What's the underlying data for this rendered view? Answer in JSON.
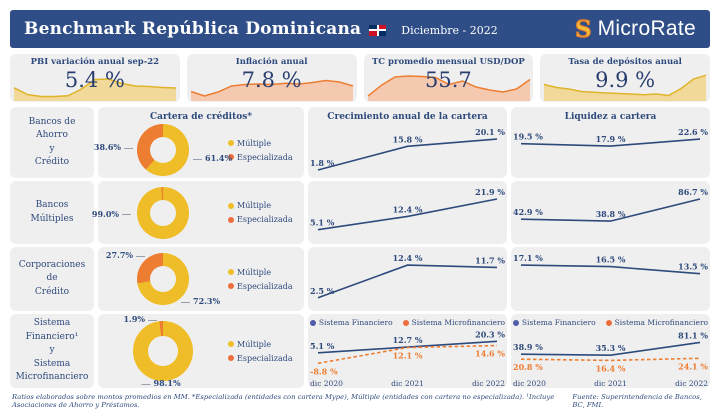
{
  "header": {
    "title": "Benchmark República Dominicana",
    "period": "Diciembre - 2022",
    "logo_glyph": "S",
    "logo_text": "MicroRate"
  },
  "columns": {
    "portfolio": "Cartera de créditos*",
    "growth": "Crecimiento anual de la cartera",
    "liquidity": "Liquidez a cartera"
  },
  "donut_legend": {
    "multiple": "Múltiple",
    "specialized": "Especializada"
  },
  "series_legend": {
    "financial": "Sistema Financiero",
    "micro": "Sistema Microfinanciero"
  },
  "rows": [
    {
      "label": "Bancos de\nAhorro\ny\nCrédito"
    },
    {
      "label": "Bancos\nMúltiples"
    },
    {
      "label": "Corporaciones\nde\nCrédito"
    },
    {
      "label": "Sistema\nFinanciero¹\ny\nSistema\nMicrofinanciero"
    }
  ],
  "footer": {
    "left": "Ratios elaborados sobre montos promedios en MM. *Especializada (entidades con cartera Mype), Múltiple (entidades con cartera no especializada). ¹Incluye Asociaciones de Ahorro y Préstamos.",
    "right": "Fuente: Superintendencia de Bancos, BC, FMI."
  },
  "colors": {
    "navy": "#2E4A7C",
    "header_bg": "#2F4E87",
    "yellow": "#EFBD27",
    "orange": "#ED7D31",
    "panel_gray": "#EFEFEF"
  },
  "chart_data": [
    {
      "id": "kpi-pbi",
      "type": "area",
      "title": "PBI variación anual sep-22",
      "value_label": "5.4 %",
      "stroke": "#E0B32A",
      "fill": "#F1D583",
      "values_relative": [
        0.45,
        0.18,
        0.1,
        0.1,
        0.13,
        0.4,
        0.78,
        0.8,
        0.62,
        0.52,
        0.5,
        0.46,
        0.44
      ]
    },
    {
      "id": "kpi-inflacion",
      "type": "area",
      "title": "Inflación anual",
      "value_label": "7.8 %",
      "stroke": "#ED7D31",
      "fill": "#F5BFA0",
      "values_relative": [
        0.3,
        0.12,
        0.28,
        0.52,
        0.58,
        0.6,
        0.58,
        0.63,
        0.6,
        0.66,
        0.74,
        0.68,
        0.52
      ]
    },
    {
      "id": "kpi-tc",
      "type": "area",
      "title": "TC promedio mensual USD/DOP",
      "value_label": "55.7",
      "stroke": "#ED7D31",
      "fill": "#F5BFA0",
      "values_relative": [
        0.12,
        0.55,
        0.88,
        0.92,
        0.9,
        0.86,
        0.58,
        0.72,
        0.48,
        0.36,
        0.28,
        0.4,
        0.78
      ]
    },
    {
      "id": "kpi-depositos",
      "type": "area",
      "title": "Tasa de depósitos anual",
      "value_label": "9.9 %",
      "stroke": "#E0B32A",
      "fill": "#F1D583",
      "values_relative": [
        0.58,
        0.46,
        0.4,
        0.3,
        0.27,
        0.24,
        0.22,
        0.2,
        0.17,
        0.2,
        0.14,
        0.42,
        0.8,
        0.95
      ]
    },
    {
      "id": "donut-bac",
      "type": "pie",
      "labels": [
        "Múltiple",
        "Especializada"
      ],
      "values": [
        61.4,
        38.6
      ],
      "display": [
        "61.4%",
        "38.6%"
      ],
      "colors": [
        "#EFBD27",
        "#ED7D31"
      ]
    },
    {
      "id": "donut-bm",
      "type": "pie",
      "labels": [
        "Múltiple",
        "Especializada"
      ],
      "values": [
        99.0,
        1.0
      ],
      "display": [
        "99.0%",
        ""
      ],
      "colors": [
        "#EFBD27",
        "#ED7D31"
      ]
    },
    {
      "id": "donut-cc",
      "type": "pie",
      "labels": [
        "Múltiple",
        "Especializada"
      ],
      "values": [
        72.3,
        27.7
      ],
      "display": [
        "72.3%",
        "27.7%"
      ],
      "colors": [
        "#EFBD27",
        "#ED7D31"
      ]
    },
    {
      "id": "donut-sf",
      "type": "pie",
      "labels": [
        "Múltiple",
        "Especializada"
      ],
      "values": [
        98.1,
        1.9
      ],
      "display": [
        "98.1%",
        "1.9%"
      ],
      "colors": [
        "#EFBD27",
        "#ED7D31"
      ]
    },
    {
      "id": "growth-bac",
      "type": "line",
      "x": [
        "dic 2020",
        "dic 2021",
        "dic 2022"
      ],
      "x_labels_show": false,
      "series": [
        {
          "name": "Bancos de Ahorro y Crédito",
          "values": [
            1.8,
            15.8,
            20.1
          ],
          "color": "#2E4A7C",
          "dashed": false,
          "label_side": "above"
        }
      ]
    },
    {
      "id": "growth-bm",
      "type": "line",
      "x": [
        "dic 2020",
        "dic 2021",
        "dic 2022"
      ],
      "x_labels_show": false,
      "series": [
        {
          "name": "Bancos Múltiples",
          "values": [
            5.1,
            12.4,
            21.9
          ],
          "color": "#2E4A7C",
          "dashed": false,
          "label_side": "above"
        }
      ]
    },
    {
      "id": "growth-cc",
      "type": "line",
      "x": [
        "dic 2020",
        "dic 2021",
        "dic 2022"
      ],
      "x_labels_show": false,
      "series": [
        {
          "name": "Corporaciones de Crédito",
          "values": [
            2.5,
            12.4,
            11.7
          ],
          "color": "#2E4A7C",
          "dashed": false,
          "label_side": "above"
        }
      ]
    },
    {
      "id": "growth-sf",
      "type": "line",
      "x": [
        "dic 2020",
        "dic 2021",
        "dic 2022"
      ],
      "x_labels_show": true,
      "series": [
        {
          "name": "Sistema Financiero",
          "values": [
            5.1,
            12.7,
            20.3
          ],
          "color": "#2E4A7C",
          "dashed": false,
          "label_side": "above"
        },
        {
          "name": "Sistema Microfinanciero",
          "values": [
            -8.8,
            12.1,
            14.6
          ],
          "color": "#ED7D31",
          "dashed": true,
          "label_side": "below"
        }
      ]
    },
    {
      "id": "liq-bac",
      "type": "line",
      "x": [
        "dic 2020",
        "dic 2021",
        "dic 2022"
      ],
      "x_labels_show": false,
      "series": [
        {
          "name": "Bancos de Ahorro y Crédito",
          "values": [
            19.5,
            17.9,
            22.6
          ],
          "color": "#2E4A7C",
          "dashed": false,
          "label_side": "above"
        }
      ]
    },
    {
      "id": "liq-bm",
      "type": "line",
      "x": [
        "dic 2020",
        "dic 2021",
        "dic 2022"
      ],
      "x_labels_show": false,
      "series": [
        {
          "name": "Bancos Múltiples",
          "values": [
            42.9,
            38.8,
            86.7
          ],
          "color": "#2E4A7C",
          "dashed": false,
          "label_side": "above"
        }
      ]
    },
    {
      "id": "liq-cc",
      "type": "line",
      "x": [
        "dic 2020",
        "dic 2021",
        "dic 2022"
      ],
      "x_labels_show": false,
      "series": [
        {
          "name": "Corporaciones de Crédito",
          "values": [
            17.1,
            16.5,
            13.5
          ],
          "color": "#2E4A7C",
          "dashed": false,
          "label_side": "above"
        }
      ]
    },
    {
      "id": "liq-sf",
      "type": "line",
      "x": [
        "dic 2020",
        "dic 2021",
        "dic 2022"
      ],
      "x_labels_show": true,
      "series": [
        {
          "name": "Sistema Financiero",
          "values": [
            38.9,
            35.3,
            81.1
          ],
          "color": "#2E4A7C",
          "dashed": false,
          "label_side": "above"
        },
        {
          "name": "Sistema Microfinanciero",
          "values": [
            20.8,
            16.4,
            24.1
          ],
          "color": "#ED7D31",
          "dashed": true,
          "label_side": "below"
        }
      ]
    }
  ]
}
